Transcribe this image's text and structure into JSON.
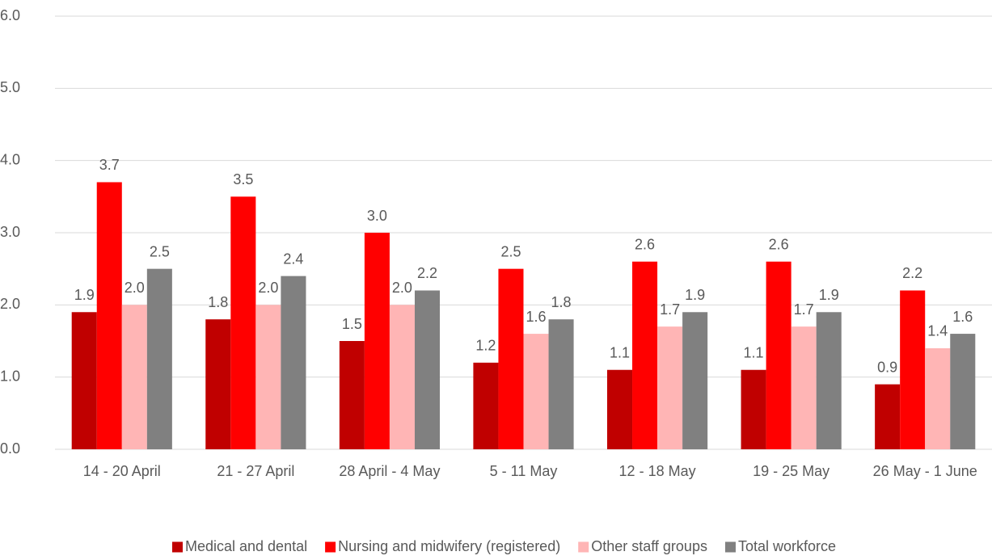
{
  "chart_data": {
    "type": "bar",
    "categories": [
      "14 - 20 April",
      "21 - 27 April",
      "28 April - 4 May",
      "5 - 11 May",
      "12 - 18 May",
      "19 - 25 May",
      "26 May - 1 June"
    ],
    "series": [
      {
        "name": "Medical and dental",
        "color": "#c00000",
        "values": [
          1.9,
          1.8,
          1.5,
          1.2,
          1.1,
          1.1,
          0.9
        ],
        "value_labels": [
          "1.9",
          "1.8",
          "1.5",
          "1.2",
          "1.1",
          "1.1",
          "0.9"
        ]
      },
      {
        "name": "Nursing and midwifery (registered)",
        "color": "#ff0000",
        "values": [
          3.7,
          3.5,
          3.0,
          2.5,
          2.6,
          2.6,
          2.2
        ],
        "value_labels": [
          "3.7",
          "3.5",
          "3.0",
          "2.5",
          "2.6",
          "2.6",
          "2.2"
        ]
      },
      {
        "name": "Other staff groups",
        "color": "#ffb5b5",
        "values": [
          2.0,
          2.0,
          2.0,
          1.6,
          1.7,
          1.7,
          1.4
        ],
        "value_labels": [
          "2.0",
          "2.0",
          "2.0",
          "1.6",
          "1.7",
          "1.7",
          "1.4"
        ]
      },
      {
        "name": "Total workforce",
        "color": "#808080",
        "values": [
          2.5,
          2.4,
          2.2,
          1.8,
          1.9,
          1.9,
          1.6
        ],
        "value_labels": [
          "2.5",
          "2.4",
          "2.2",
          "1.8",
          "1.9",
          "1.9",
          "1.6"
        ]
      }
    ],
    "ylim": [
      0,
      6
    ],
    "yticks": [
      {
        "value": 0,
        "label": "0.0"
      },
      {
        "value": 1,
        "label": "1.0"
      },
      {
        "value": 2,
        "label": "2.0"
      },
      {
        "value": 3,
        "label": "3.0"
      },
      {
        "value": 4,
        "label": "4.0"
      },
      {
        "value": 5,
        "label": "5.0"
      },
      {
        "value": 6,
        "label": "6.0"
      }
    ],
    "grid": true,
    "legend": "bottom"
  }
}
